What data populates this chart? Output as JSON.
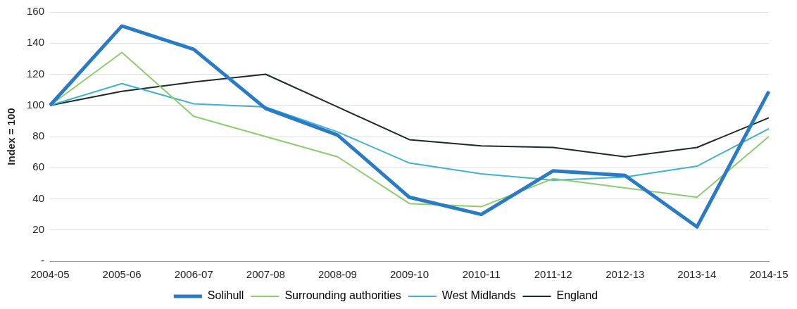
{
  "chart_data": {
    "type": "line",
    "ylabel": "Index = 100",
    "categories": [
      "2004-05",
      "2005-06",
      "2006-07",
      "2007-08",
      "2008-09",
      "2009-10",
      "2010-11",
      "2011-12",
      "2012-13",
      "2013-14",
      "2014-15"
    ],
    "series": [
      {
        "name": "Solihull",
        "color": "#2a7bc6",
        "values": [
          100,
          151,
          136,
          98,
          81,
          41,
          30,
          58,
          55,
          22,
          109
        ]
      },
      {
        "name": "Surrounding authorities",
        "color": "#8ccc6e",
        "values": [
          100,
          134,
          93,
          80,
          67,
          37,
          35,
          53,
          47,
          41,
          80
        ]
      },
      {
        "name": "West Midlands",
        "color": "#3fb3cc",
        "values": [
          100,
          114,
          101,
          99,
          83,
          63,
          56,
          52,
          54,
          61,
          85
        ]
      },
      {
        "name": "England",
        "color": "#1b2a2a",
        "values": [
          100,
          109,
          115,
          120,
          99,
          78,
          74,
          73,
          67,
          73,
          92
        ]
      }
    ],
    "ylim": [
      0,
      160
    ],
    "yticks": [
      {
        "value": 0,
        "label": "-"
      },
      20,
      40,
      60,
      80,
      100,
      120,
      140,
      160
    ],
    "grid": "y",
    "legend": "bottom",
    "marker": "none",
    "line_style": "solid"
  }
}
